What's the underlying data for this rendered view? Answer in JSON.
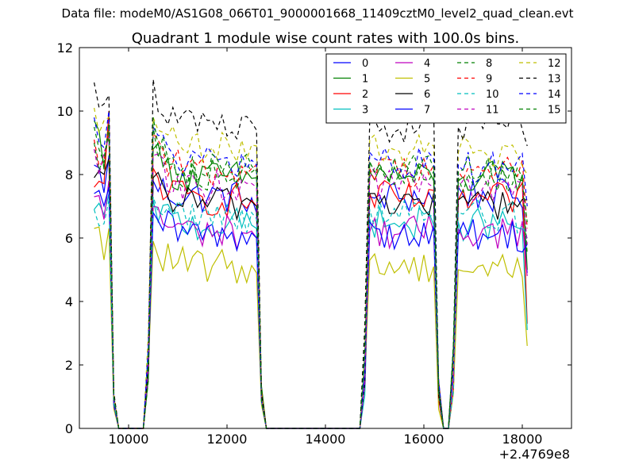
{
  "header": {
    "data_file": "Data file: modeM0/AS1G08_066T01_9000001668_11409cztM0_level2_quad_clean.evt"
  },
  "chart_data": {
    "type": "line",
    "title": "Quadrant 1 module wise count rates with 100.0s bins.",
    "xlabel": "",
    "ylabel": "",
    "x_offset_label": "+2.4769e8",
    "xlim": [
      9000,
      19000
    ],
    "ylim": [
      0,
      12
    ],
    "x_ticks": [
      10000,
      12000,
      14000,
      16000,
      18000
    ],
    "y_ticks": [
      0,
      2,
      4,
      6,
      8,
      10,
      12
    ],
    "x_tick_labels": [
      "10000",
      "12000",
      "14000",
      "16000",
      "18000"
    ],
    "y_tick_labels": [
      "0",
      "2",
      "4",
      "6",
      "8",
      "10",
      "12"
    ],
    "grid": false,
    "legend_position": "top-right",
    "legend_columns": 4,
    "segments": [
      {
        "x_start": 9300,
        "x_end": 9600,
        "trailing_zero_x": [
          9700,
          9800,
          9900
        ]
      },
      {
        "x_start": 10500,
        "x_end": 12600,
        "leading_zero_x": [
          9900,
          10000,
          10100,
          10200,
          10300
        ],
        "leading_rise_x": [
          10400
        ],
        "trailing_rise_x": [
          12700
        ]
      },
      {
        "x_start": 14900,
        "x_end": 16200,
        "leading_zero_x": [
          12800,
          14700
        ],
        "leading_rise_x": [
          14800
        ],
        "trailing_rise_x": [
          16300
        ]
      },
      {
        "x_start": 16700,
        "x_end": 18100,
        "leading_zero_x": [
          16400,
          16500
        ],
        "leading_rise_x": [
          16600
        ]
      }
    ],
    "series": [
      {
        "name": "0",
        "color": "#0000ff",
        "dash": "solid",
        "mean": 7.3,
        "seg_start": [
          8.3,
          7.8,
          7.3,
          7.6
        ],
        "seg_end": [
          8.6,
          6.8,
          7.1,
          4.9
        ]
      },
      {
        "name": "1",
        "color": "#008000",
        "dash": "solid",
        "mean": 7.9,
        "seg_start": [
          9.7,
          8.8,
          8.1,
          7.8
        ],
        "seg_end": [
          9.5,
          7.9,
          7.8,
          5.0
        ]
      },
      {
        "name": "2",
        "color": "#ff0000",
        "dash": "solid",
        "mean": 7.2,
        "seg_start": [
          7.6,
          8.2,
          7.4,
          7.2
        ],
        "seg_end": [
          10.0,
          7.0,
          7.5,
          3.3
        ]
      },
      {
        "name": "3",
        "color": "#00bfbf",
        "dash": "solid",
        "mean": 6.4,
        "seg_start": [
          6.9,
          7.2,
          6.6,
          6.5
        ],
        "seg_end": [
          7.4,
          6.3,
          6.4,
          3.1
        ]
      },
      {
        "name": "4",
        "color": "#bf00bf",
        "dash": "solid",
        "mean": 6.2,
        "seg_start": [
          7.3,
          7.0,
          6.2,
          6.3
        ],
        "seg_end": [
          7.8,
          6.0,
          6.2,
          4.8
        ]
      },
      {
        "name": "5",
        "color": "#bfbf00",
        "dash": "solid",
        "mean": 5.1,
        "seg_start": [
          6.3,
          5.9,
          5.3,
          5.0
        ],
        "seg_end": [
          6.3,
          4.9,
          5.1,
          2.6
        ]
      },
      {
        "name": "6",
        "color": "#000000",
        "dash": "solid",
        "mean": 7.1,
        "seg_start": [
          7.9,
          7.9,
          7.4,
          7.2
        ],
        "seg_end": [
          8.5,
          7.0,
          7.4,
          7.2
        ]
      },
      {
        "name": "7",
        "color": "#0000ff",
        "dash": "solid",
        "mean": 6.1,
        "seg_start": [
          7.4,
          6.8,
          6.5,
          6.1
        ],
        "seg_end": [
          7.6,
          6.0,
          6.4,
          5.8
        ]
      },
      {
        "name": "8",
        "color": "#008000",
        "dash": "dashed",
        "mean": 8.0,
        "seg_start": [
          9.0,
          9.5,
          8.4,
          7.9
        ],
        "seg_end": [
          9.2,
          8.2,
          8.1,
          5.5
        ]
      },
      {
        "name": "9",
        "color": "#ff0000",
        "dash": "dashed",
        "mean": 8.1,
        "seg_start": [
          9.1,
          9.3,
          8.2,
          8.1
        ],
        "seg_end": [
          9.4,
          8.3,
          8.3,
          6.3
        ]
      },
      {
        "name": "10",
        "color": "#00bfbf",
        "dash": "dashed",
        "mean": 6.7,
        "seg_start": [
          6.9,
          7.3,
          6.9,
          6.8
        ],
        "seg_end": [
          7.2,
          6.6,
          6.7,
          6.0
        ]
      },
      {
        "name": "11",
        "color": "#bf00bf",
        "dash": "dashed",
        "mean": 7.6,
        "seg_start": [
          8.8,
          8.6,
          7.9,
          7.6
        ],
        "seg_end": [
          9.2,
          7.6,
          7.6,
          5.8
        ]
      },
      {
        "name": "12",
        "color": "#bfbf00",
        "dash": "dashed",
        "mean": 8.8,
        "seg_start": [
          10.1,
          9.8,
          9.1,
          8.7
        ],
        "seg_end": [
          9.8,
          8.9,
          8.9,
          8.0
        ]
      },
      {
        "name": "13",
        "color": "#000000",
        "dash": "dashed",
        "mean": 9.5,
        "seg_start": [
          10.9,
          11.0,
          9.7,
          9.5
        ],
        "seg_end": [
          10.5,
          9.4,
          10.0,
          8.9
        ]
      },
      {
        "name": "14",
        "color": "#0000ff",
        "dash": "dashed",
        "mean": 8.3,
        "seg_start": [
          9.8,
          9.5,
          8.7,
          8.3
        ],
        "seg_end": [
          10.0,
          8.3,
          8.5,
          7.0
        ]
      },
      {
        "name": "15",
        "color": "#008000",
        "dash": "dashed",
        "mean": 8.1,
        "seg_start": [
          9.5,
          9.8,
          8.4,
          8.1
        ],
        "seg_end": [
          9.6,
          8.1,
          8.2,
          6.5
        ]
      }
    ]
  }
}
